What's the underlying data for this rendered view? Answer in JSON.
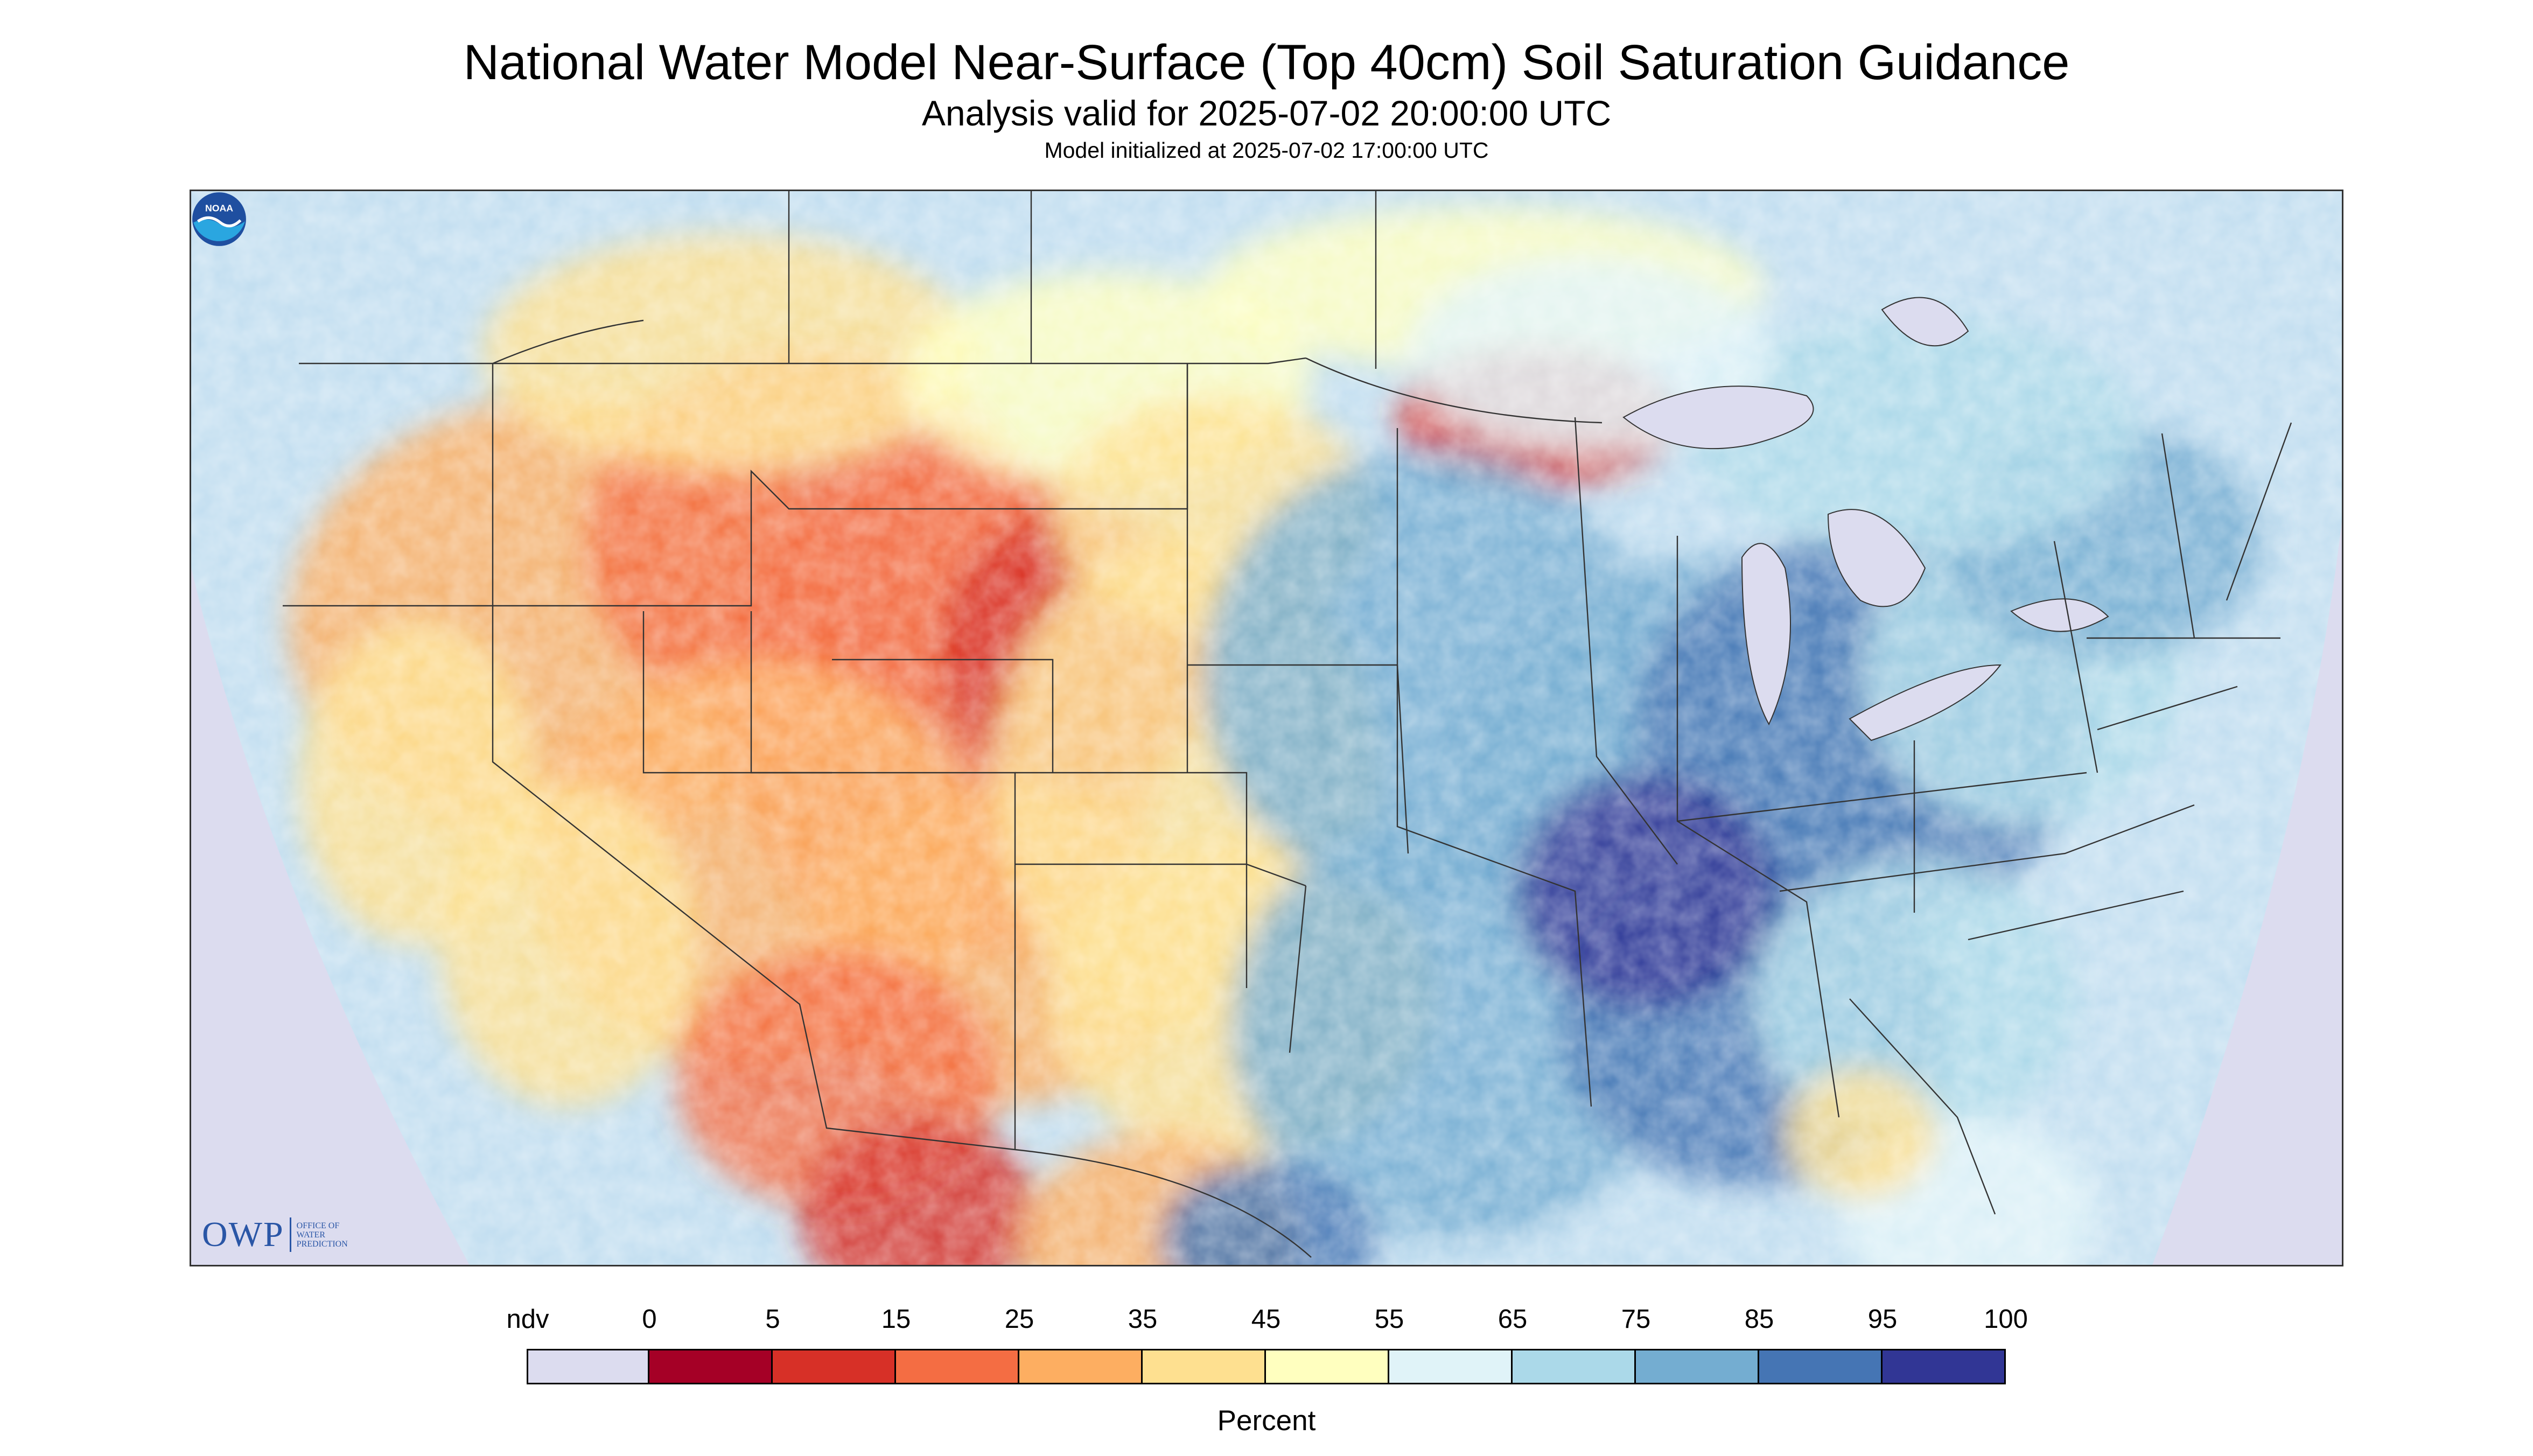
{
  "header": {
    "title": "National Water Model Near-Surface (Top 40cm) Soil Saturation Guidance",
    "subtitle": "Analysis valid for 2025-07-02 20:00:00 UTC",
    "init": "Model initialized at 2025-07-02 17:00:00 UTC"
  },
  "map": {
    "region": "Contiguous United States with portions of Canada and Mexico",
    "background_color": "#dcdcef",
    "boundary_color": "#333333"
  },
  "logos": {
    "owp_mark": "OWP",
    "owp_sub": "Office of Water Prediction",
    "noaa": "NOAA"
  },
  "legend": {
    "units": "Percent",
    "ndv_label": "ndv",
    "ndv_color": "#dcdcef",
    "ticks": [
      "0",
      "5",
      "15",
      "25",
      "35",
      "45",
      "55",
      "65",
      "75",
      "85",
      "95",
      "100"
    ],
    "colors": [
      "#a50026",
      "#d73027",
      "#f46d43",
      "#fdae61",
      "#fee090",
      "#ffffbf",
      "#e0f3f8",
      "#abd9e9",
      "#74add1",
      "#4575b4",
      "#313695"
    ]
  }
}
